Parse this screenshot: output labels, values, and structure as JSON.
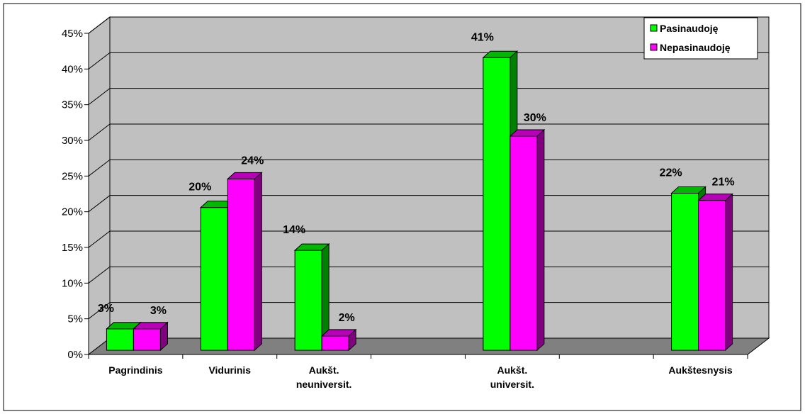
{
  "chart_data": {
    "type": "bar",
    "title": "",
    "xlabel": "",
    "ylabel": "",
    "categories": [
      [
        "Pagrindinis"
      ],
      [
        "Vidurinis"
      ],
      [
        "Aukšt.",
        "neuniversit."
      ],
      [],
      [
        "Aukšt.",
        "universit."
      ],
      [],
      [
        "Aukštesnysis"
      ]
    ],
    "series": [
      {
        "name": "Pasinaudoję",
        "color": "#00FF00",
        "values": [
          3,
          20,
          14,
          null,
          41,
          null,
          22
        ],
        "labels": [
          "3%",
          "20%",
          "14%",
          "",
          "41%",
          "",
          "22%"
        ]
      },
      {
        "name": "Nepasinaudoję",
        "color": "#FF00FF",
        "values": [
          3,
          24,
          2,
          null,
          30,
          null,
          21
        ],
        "labels": [
          "3%",
          "24%",
          "2%",
          "",
          "30%",
          "",
          "21%"
        ]
      }
    ],
    "ylim": [
      0,
      45
    ],
    "yticks": [
      {
        "value": 0,
        "label": "0%"
      },
      {
        "value": 5,
        "label": "5%"
      },
      {
        "value": 10,
        "label": "10%"
      },
      {
        "value": 15,
        "label": "15%"
      },
      {
        "value": 20,
        "label": "20%"
      },
      {
        "value": 25,
        "label": "25%"
      },
      {
        "value": 30,
        "label": "30%"
      },
      {
        "value": 35,
        "label": "35%"
      },
      {
        "value": 40,
        "label": "40%"
      },
      {
        "value": 45,
        "label": "45%"
      }
    ],
    "grid": true,
    "legend_position": "top-right",
    "style": "3d-clustered-column"
  }
}
